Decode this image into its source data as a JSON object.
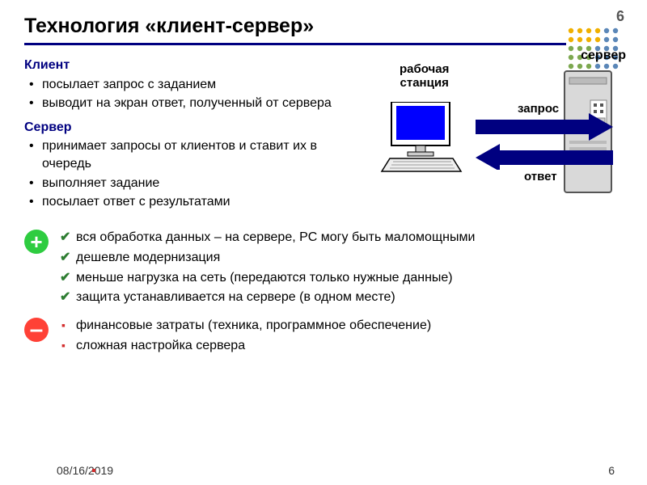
{
  "page_number_top": "6",
  "title": "Технология «клиент-сервер»",
  "title_rule_color": "#000080",
  "client": {
    "heading": "Клиент",
    "items": [
      "посылает запрос с заданием",
      "выводит на экран ответ, полученный от сервера"
    ]
  },
  "server_text": {
    "heading": "Сервер",
    "items": [
      "принимает запросы от клиентов и ставит их в очередь",
      "выполняет задание",
      "посылает ответ с результатами"
    ]
  },
  "diagram": {
    "workstation_label": "рабочая станция",
    "server_label": "сервер",
    "request_label": "запрос",
    "response_label": "ответ",
    "arrow_color": "#000080",
    "monitor_screen_color": "#0000ff",
    "server_body_color": "#d9d9d9"
  },
  "pros": {
    "icon_bg": "#2ecc40",
    "check_color": "#2e7d32",
    "items": [
      "вся обработка данных – на сервере, PC могу быть маломощными",
      "дешевле модернизация",
      "меньше нагрузка на сеть (передаются только нужные данные)",
      "защита устанавливается на сервере (в одном месте)"
    ]
  },
  "cons": {
    "icon_bg": "#ff4136",
    "bullet_color": "#d32f2f",
    "items": [
      "финансовые затраты (техника, программное обеспечение)",
      "сложная настройка сервера"
    ]
  },
  "footer": {
    "date": "08/16/2019",
    "page": "6"
  },
  "dot_pattern": {
    "colors": [
      "#f0b000",
      "#5b87b8",
      "#7da850"
    ],
    "rows": 5,
    "cols": 6,
    "dot_r": 3.2,
    "gap": 11
  }
}
